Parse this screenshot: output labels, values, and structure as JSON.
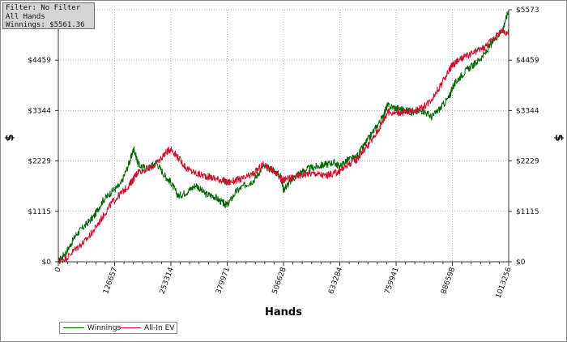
{
  "filter_box": {
    "line1": "Filter: No Filter",
    "line2": "All Hands",
    "line3": "Winnings: $5561.36"
  },
  "chart_data": {
    "type": "line",
    "xlabel": "Hands",
    "ylabel": "$",
    "xlim": [
      0,
      1013256
    ],
    "ylim": [
      0,
      5573
    ],
    "x_ticks": [
      0,
      126657,
      253314,
      379971,
      506628,
      633284,
      759941,
      886598,
      1013256
    ],
    "x_tick_labels": [
      "0",
      "126657",
      "253314",
      "379971",
      "506628",
      "633284",
      "759941",
      "886598",
      "1013256"
    ],
    "y_ticks": [
      0,
      1115,
      2229,
      3344,
      4459,
      5573
    ],
    "y_tick_labels": [
      "$0",
      "$1115",
      "$2229",
      "$3344",
      "$4459",
      "$5573"
    ],
    "grid": true,
    "legend_position": "bottom-left",
    "series": [
      {
        "name": "Winnings",
        "color": "#006400",
        "x": [
          0,
          20000,
          40000,
          60000,
          80000,
          100000,
          120000,
          140000,
          160000,
          170000,
          180000,
          200000,
          220000,
          240000,
          253314,
          270000,
          290000,
          310000,
          330000,
          350000,
          370000,
          379971,
          400000,
          420000,
          440000,
          460000,
          480000,
          500000,
          506628,
          520000,
          540000,
          560000,
          580000,
          600000,
          620000,
          633284,
          650000,
          670000,
          690000,
          710000,
          730000,
          740000,
          759941,
          780000,
          800000,
          820000,
          840000,
          860000,
          880000,
          886598,
          900000,
          920000,
          940000,
          960000,
          980000,
          1000000,
          1013256
        ],
        "values": [
          0,
          250,
          600,
          800,
          1000,
          1350,
          1550,
          1700,
          2200,
          2500,
          2150,
          2050,
          2200,
          1900,
          1750,
          1450,
          1550,
          1700,
          1500,
          1450,
          1300,
          1250,
          1550,
          1700,
          1800,
          2100,
          2050,
          1900,
          1600,
          1750,
          1950,
          2050,
          2100,
          2150,
          2200,
          2100,
          2250,
          2300,
          2600,
          2900,
          3200,
          3450,
          3400,
          3350,
          3300,
          3350,
          3200,
          3400,
          3650,
          3850,
          4050,
          4250,
          4400,
          4600,
          4900,
          5150,
          5561
        ]
      },
      {
        "name": "All-In EV",
        "color": "#c8102e",
        "x": [
          0,
          20000,
          40000,
          60000,
          80000,
          100000,
          120000,
          140000,
          160000,
          170000,
          180000,
          200000,
          220000,
          240000,
          253314,
          270000,
          290000,
          310000,
          330000,
          350000,
          370000,
          379971,
          400000,
          420000,
          440000,
          460000,
          480000,
          500000,
          506628,
          520000,
          540000,
          560000,
          580000,
          600000,
          620000,
          633284,
          650000,
          670000,
          690000,
          710000,
          730000,
          740000,
          759941,
          780000,
          800000,
          820000,
          840000,
          860000,
          880000,
          886598,
          900000,
          920000,
          940000,
          960000,
          980000,
          1000000,
          1013256
        ],
        "values": [
          0,
          100,
          300,
          450,
          700,
          1000,
          1300,
          1500,
          1700,
          1850,
          2000,
          2050,
          2150,
          2400,
          2500,
          2300,
          2050,
          1950,
          1900,
          1850,
          1800,
          1750,
          1800,
          1850,
          1950,
          2150,
          2050,
          1850,
          1800,
          1850,
          1900,
          1950,
          1950,
          1900,
          1950,
          2000,
          2150,
          2250,
          2500,
          2750,
          3100,
          3300,
          3300,
          3300,
          3350,
          3400,
          3600,
          3900,
          4250,
          4350,
          4450,
          4550,
          4650,
          4750,
          4950,
          5100,
          5050
        ]
      }
    ]
  }
}
